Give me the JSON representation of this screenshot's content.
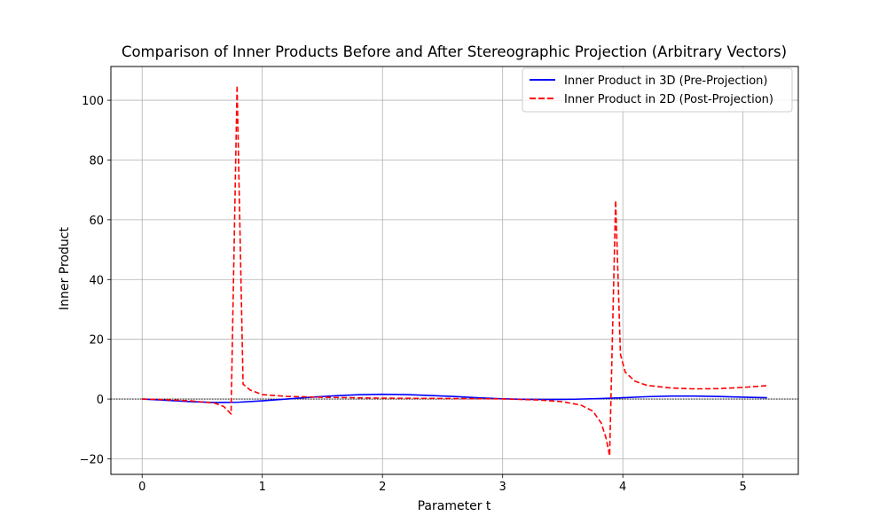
{
  "chart_data": {
    "type": "line",
    "title": "Comparison of Inner Products Before and After Stereographic Projection (Arbitrary Vectors)",
    "xlabel": "Parameter t",
    "ylabel": "Inner Product",
    "xlim": [
      -0.26,
      5.46
    ],
    "ylim": [
      -25.2,
      111.3
    ],
    "x_ticks": [
      0,
      1,
      2,
      3,
      4,
      5
    ],
    "x_tick_labels": [
      "0",
      "1",
      "2",
      "3",
      "4",
      "5"
    ],
    "y_ticks": [
      -20,
      0,
      20,
      40,
      60,
      80,
      100
    ],
    "y_tick_labels": [
      "−20",
      "0",
      "20",
      "40",
      "60",
      "80",
      "100"
    ],
    "grid": true,
    "legend_position": "top-right",
    "zero_line": true,
    "colors": {
      "series1": "#0000ff",
      "series2": "#ff0000",
      "grid": "#b0b0b0"
    },
    "series": [
      {
        "name": "Inner Product in 3D (Pre-Projection)",
        "style": "solid",
        "color": "#0000ff",
        "x": [
          0,
          0.2,
          0.4,
          0.6,
          0.8,
          1.0,
          1.2,
          1.4,
          1.6,
          1.8,
          2.0,
          2.2,
          2.4,
          2.6,
          2.8,
          3.0,
          3.2,
          3.4,
          3.6,
          3.8,
          4.0,
          4.2,
          4.4,
          4.6,
          4.8,
          5.0,
          5.2
        ],
        "y": [
          0,
          -0.4,
          -0.85,
          -1.15,
          -1.05,
          -0.6,
          0.0,
          0.6,
          1.1,
          1.45,
          1.6,
          1.5,
          1.2,
          0.85,
          0.4,
          0.1,
          -0.1,
          -0.15,
          -0.05,
          0.15,
          0.45,
          0.8,
          1.0,
          1.0,
          0.85,
          0.65,
          0.45
        ]
      },
      {
        "name": "Inner Product in 2D (Post-Projection)",
        "style": "dashed",
        "color": "#ff0000",
        "x": [
          0,
          0.2,
          0.4,
          0.6,
          0.68,
          0.74,
          0.79,
          0.84,
          0.9,
          1.0,
          1.2,
          1.5,
          2.0,
          2.5,
          3.0,
          3.3,
          3.5,
          3.65,
          3.75,
          3.82,
          3.86,
          3.89,
          3.94,
          3.98,
          4.02,
          4.1,
          4.2,
          4.4,
          4.6,
          4.8,
          5.0,
          5.2
        ],
        "y": [
          0,
          -0.2,
          -0.6,
          -1.3,
          -2.5,
          -5.0,
          105,
          5.0,
          3.0,
          1.5,
          0.9,
          0.6,
          0.3,
          0.2,
          0.05,
          -0.3,
          -0.9,
          -2.0,
          -4.0,
          -8.0,
          -13.0,
          -19.0,
          66.5,
          15.0,
          9.0,
          6.0,
          4.6,
          3.7,
          3.4,
          3.5,
          3.9,
          4.5
        ]
      }
    ]
  }
}
